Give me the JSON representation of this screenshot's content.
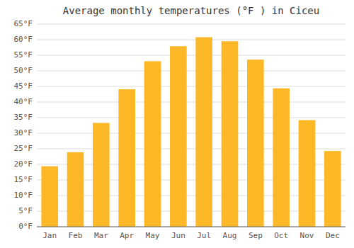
{
  "chart_data": {
    "type": "bar",
    "title": "Average monthly temperatures (°F ) in Ciceu",
    "categories": [
      "Jan",
      "Feb",
      "Mar",
      "Apr",
      "May",
      "Jun",
      "Jul",
      "Aug",
      "Sep",
      "Oct",
      "Nov",
      "Dec"
    ],
    "values": [
      19.4,
      23.9,
      33.3,
      44.1,
      53.1,
      57.9,
      60.8,
      59.5,
      53.6,
      44.4,
      34.2,
      24.3
    ],
    "color": "#FDB827",
    "ylim": [
      0,
      65
    ],
    "yticks": [
      {
        "value": 0,
        "label": "0°F"
      },
      {
        "value": 5,
        "label": "5°F"
      },
      {
        "value": 10,
        "label": "10°F"
      },
      {
        "value": 15,
        "label": "15°F"
      },
      {
        "value": 20,
        "label": "20°F"
      },
      {
        "value": 25,
        "label": "25°F"
      },
      {
        "value": 30,
        "label": "30°F"
      },
      {
        "value": 35,
        "label": "35°F"
      },
      {
        "value": 40,
        "label": "40°F"
      },
      {
        "value": 45,
        "label": "45°F"
      },
      {
        "value": 50,
        "label": "50°F"
      },
      {
        "value": 55,
        "label": "55°F"
      },
      {
        "value": 60,
        "label": "60°F"
      },
      {
        "value": 65,
        "label": "65°F"
      }
    ],
    "grid": true
  }
}
